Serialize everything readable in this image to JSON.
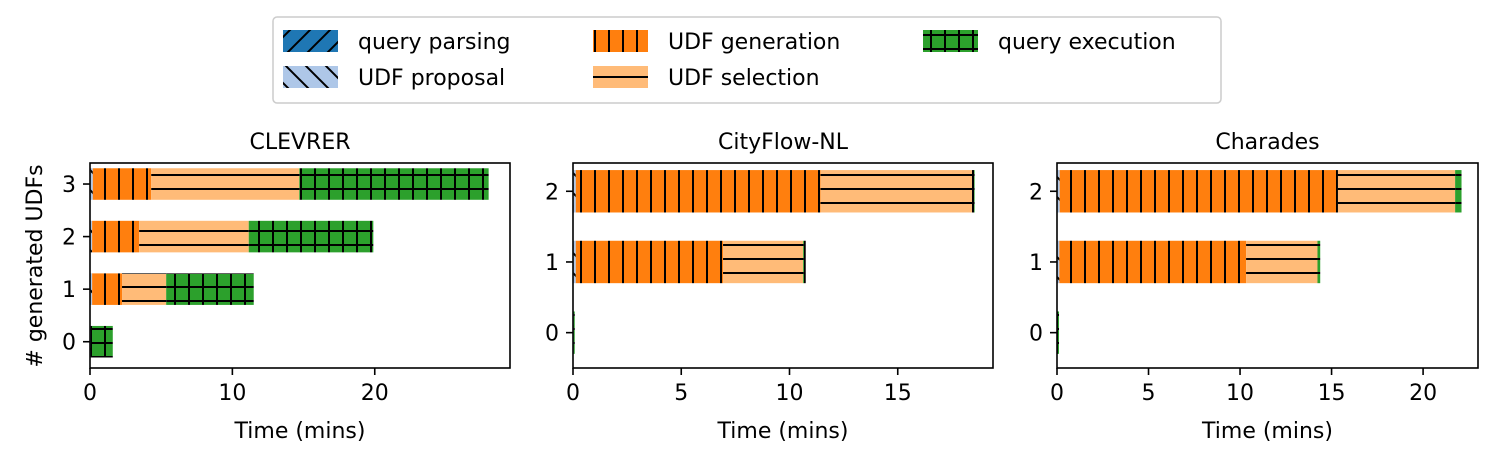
{
  "figure": {
    "ylabel": "# generated UDFs",
    "legend": {
      "position": "top-center",
      "items": [
        {
          "label": "query parsing",
          "color": "#1f77b4",
          "hatch": "/"
        },
        {
          "label": "UDF proposal",
          "color": "#aec7e8",
          "hatch": "\\"
        },
        {
          "label": "UDF generation",
          "color": "#ff7f0e",
          "hatch": "|"
        },
        {
          "label": "UDF selection",
          "color": "#ffbb78",
          "hatch": "-"
        },
        {
          "label": "query execution",
          "color": "#2ca02c",
          "hatch": "+"
        }
      ]
    }
  },
  "chart_data": [
    {
      "type": "bar",
      "orientation": "horizontal-stacked",
      "title": "CLEVRER",
      "xlabel": "Time (mins)",
      "xlim": [
        0,
        29.5
      ],
      "xticks": [
        0,
        10,
        20
      ],
      "ylim": [
        -0.5,
        3.4
      ],
      "yticks": [
        0,
        1,
        2,
        3
      ],
      "bars": [
        {
          "y": 0,
          "segments": {
            "query parsing": 0.05,
            "UDF proposal": 0.0,
            "UDF generation": 0.0,
            "UDF selection": 0.0,
            "query execution": 1.55
          }
        },
        {
          "y": 1,
          "segments": {
            "query parsing": 0.05,
            "UDF proposal": 0.1,
            "UDF generation": 2.1,
            "UDF selection": 3.1,
            "query execution": 6.15
          }
        },
        {
          "y": 2,
          "segments": {
            "query parsing": 0.05,
            "UDF proposal": 0.1,
            "UDF generation": 3.3,
            "UDF selection": 7.7,
            "query execution": 8.75
          }
        },
        {
          "y": 3,
          "segments": {
            "query parsing": 0.05,
            "UDF proposal": 0.15,
            "UDF generation": 4.1,
            "UDF selection": 10.4,
            "query execution": 13.3
          }
        }
      ]
    },
    {
      "type": "bar",
      "orientation": "horizontal-stacked",
      "title": "CityFlow-NL",
      "xlabel": "Time (mins)",
      "xlim": [
        0,
        19.4
      ],
      "xticks": [
        0,
        5,
        10,
        15
      ],
      "ylim": [
        -0.5,
        2.4
      ],
      "yticks": [
        0,
        1,
        2
      ],
      "bars": [
        {
          "y": 0,
          "segments": {
            "query parsing": 0.03,
            "UDF proposal": 0.0,
            "UDF generation": 0.0,
            "UDF selection": 0.0,
            "query execution": 0.05
          }
        },
        {
          "y": 1,
          "segments": {
            "query parsing": 0.03,
            "UDF proposal": 0.1,
            "UDF generation": 6.8,
            "UDF selection": 3.7,
            "query execution": 0.12
          }
        },
        {
          "y": 2,
          "segments": {
            "query parsing": 0.03,
            "UDF proposal": 0.1,
            "UDF generation": 11.3,
            "UDF selection": 7.0,
            "query execution": 0.12
          }
        }
      ]
    },
    {
      "type": "bar",
      "orientation": "horizontal-stacked",
      "title": "Charades",
      "xlabel": "Time (mins)",
      "xlim": [
        0,
        23
      ],
      "xticks": [
        0,
        5,
        10,
        15,
        20
      ],
      "ylim": [
        -0.5,
        2.4
      ],
      "yticks": [
        0,
        1,
        2
      ],
      "bars": [
        {
          "y": 0,
          "segments": {
            "query parsing": 0.03,
            "UDF proposal": 0.0,
            "UDF generation": 0.0,
            "UDF selection": 0.0,
            "query execution": 0.08
          }
        },
        {
          "y": 1,
          "segments": {
            "query parsing": 0.03,
            "UDF proposal": 0.1,
            "UDF generation": 10.2,
            "UDF selection": 3.9,
            "query execution": 0.15
          }
        },
        {
          "y": 2,
          "segments": {
            "query parsing": 0.03,
            "UDF proposal": 0.12,
            "UDF generation": 15.2,
            "UDF selection": 6.4,
            "query execution": 0.35
          }
        }
      ]
    }
  ]
}
